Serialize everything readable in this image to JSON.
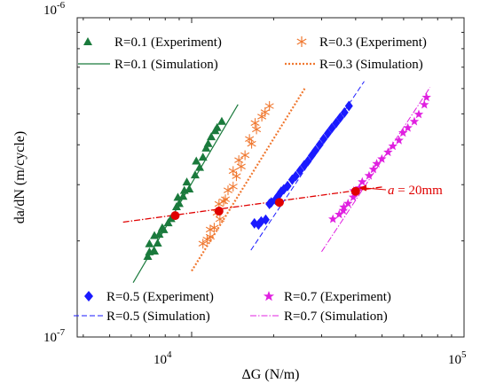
{
  "chart_data": {
    "type": "scatter",
    "title": "",
    "xlabel": "ΔG (N/m)",
    "ylabel": "da/dN (m/cycle)",
    "xscale": "log",
    "yscale": "log",
    "xlim": [
      3800,
      100000
    ],
    "ylim": [
      1e-07,
      1e-06
    ],
    "grid": false,
    "x_tick_labels": [
      {
        "value": 10000,
        "base": "10",
        "exp": "4"
      },
      {
        "value": 100000,
        "base": "10",
        "exp": "5"
      }
    ],
    "y_tick_labels": [
      {
        "value": 1e-06,
        "base": "10",
        "exp": "-6"
      },
      {
        "value": 1e-07,
        "base": "10",
        "exp": "-7"
      }
    ],
    "legends": [
      {
        "placement": "top-left",
        "entries": [
          {
            "label": "R=0.1 (Experiment)",
            "series": 0,
            "kind": "experiment"
          },
          {
            "label": "R=0.1 (Simulation)",
            "series": 0,
            "kind": "simulation"
          }
        ]
      },
      {
        "placement": "top-right",
        "entries": [
          {
            "label": "R=0.3 (Experiment)",
            "series": 1,
            "kind": "experiment"
          },
          {
            "label": "R=0.3 (Simulation)",
            "series": 1,
            "kind": "simulation"
          }
        ]
      },
      {
        "placement": "bottom-left",
        "entries": [
          {
            "label": "R=0.5 (Experiment)",
            "series": 2,
            "kind": "experiment"
          },
          {
            "label": "R=0.5 (Simulation)",
            "series": 2,
            "kind": "simulation"
          }
        ]
      },
      {
        "placement": "bottom-right",
        "entries": [
          {
            "label": "R=0.7 (Experiment)",
            "series": 3,
            "kind": "experiment"
          },
          {
            "label": "R=0.7 (Simulation)",
            "series": 3,
            "kind": "simulation"
          }
        ]
      }
    ],
    "series": [
      {
        "name": "R=0.1",
        "color": "#1a7a3c",
        "marker": "triangle",
        "line_style": "solid",
        "experiment": [
          [
            6900,
            1.79e-07
          ],
          [
            7000,
            1.85e-07
          ],
          [
            7300,
            1.86e-07
          ],
          [
            7000,
            1.96e-07
          ],
          [
            7500,
            1.97e-07
          ],
          [
            7300,
            2.08e-07
          ],
          [
            7600,
            2.1e-07
          ],
          [
            7900,
            2.17e-07
          ],
          [
            7800,
            2.2e-07
          ],
          [
            8200,
            2.28e-07
          ],
          [
            8400,
            2.35e-07
          ],
          [
            8800,
            2.56e-07
          ],
          [
            9000,
            2.62e-07
          ],
          [
            8900,
            2.74e-07
          ],
          [
            9300,
            2.76e-07
          ],
          [
            9400,
            2.88e-07
          ],
          [
            9800,
            2.91e-07
          ],
          [
            9600,
            3.06e-07
          ],
          [
            10300,
            3.22e-07
          ],
          [
            10700,
            3.4e-07
          ],
          [
            10400,
            3.56e-07
          ],
          [
            11000,
            3.66e-07
          ],
          [
            11300,
            3.91e-07
          ],
          [
            11500,
            4.04e-07
          ],
          [
            11800,
            4.24e-07
          ],
          [
            12200,
            4.43e-07
          ],
          [
            12400,
            4.53e-07
          ],
          [
            12900,
            4.74e-07
          ]
        ],
        "simulation": [
          [
            6100,
            1.48e-07
          ],
          [
            14800,
            5.35e-07
          ]
        ]
      },
      {
        "name": "R=0.3",
        "color": "#f07830",
        "marker": "asterisk",
        "line_style": "dotted",
        "experiment": [
          [
            11000,
            1.96e-07
          ],
          [
            11400,
            2.02e-07
          ],
          [
            11700,
            2.06e-07
          ],
          [
            11700,
            2.17e-07
          ],
          [
            12100,
            2.2e-07
          ],
          [
            12700,
            2.34e-07
          ],
          [
            12400,
            2.45e-07
          ],
          [
            12600,
            2.61e-07
          ],
          [
            13100,
            2.66e-07
          ],
          [
            13300,
            2.7e-07
          ],
          [
            13600,
            2.88e-07
          ],
          [
            14200,
            2.96e-07
          ],
          [
            14600,
            3.19e-07
          ],
          [
            14200,
            3.31e-07
          ],
          [
            15200,
            3.42e-07
          ],
          [
            14900,
            3.58e-07
          ],
          [
            15700,
            3.71e-07
          ],
          [
            16600,
            4.03e-07
          ],
          [
            16300,
            4.17e-07
          ],
          [
            17300,
            4.47e-07
          ],
          [
            17100,
            4.68e-07
          ],
          [
            18100,
            4.9e-07
          ],
          [
            18600,
            5.06e-07
          ],
          [
            19300,
            5.29e-07
          ]
        ],
        "simulation": [
          [
            10000,
            1.61e-07
          ],
          [
            26000,
            6e-07
          ]
        ]
      },
      {
        "name": "R=0.5",
        "color": "#1a1aff",
        "marker": "diamond",
        "line_style": "dashed",
        "experiment": [
          [
            17000,
            2.27e-07
          ],
          [
            17600,
            2.25e-07
          ],
          [
            18000,
            2.3e-07
          ],
          [
            18700,
            2.33e-07
          ],
          [
            19300,
            2.61e-07
          ],
          [
            19600,
            2.64e-07
          ],
          [
            20300,
            2.69e-07
          ],
          [
            20800,
            2.77e-07
          ],
          [
            21300,
            2.85e-07
          ],
          [
            21800,
            2.9e-07
          ],
          [
            22500,
            2.97e-07
          ],
          [
            23400,
            3.11e-07
          ],
          [
            24100,
            3.19e-07
          ],
          [
            25000,
            3.32e-07
          ],
          [
            25900,
            3.45e-07
          ],
          [
            26700,
            3.55e-07
          ],
          [
            27600,
            3.7e-07
          ],
          [
            28500,
            3.84e-07
          ],
          [
            29500,
            4e-07
          ],
          [
            30500,
            4.17e-07
          ],
          [
            31600,
            4.34e-07
          ],
          [
            32700,
            4.51e-07
          ],
          [
            33900,
            4.68e-07
          ],
          [
            35100,
            4.86e-07
          ],
          [
            36400,
            5.05e-07
          ],
          [
            37800,
            5.29e-07
          ]
        ],
        "simulation": [
          [
            16500,
            1.87e-07
          ],
          [
            43000,
            6.32e-07
          ]
        ]
      },
      {
        "name": "R=0.7",
        "color": "#e020e0",
        "marker": "star",
        "line_style": "dashdot",
        "experiment": [
          [
            33000,
            2.34e-07
          ],
          [
            34800,
            2.42e-07
          ],
          [
            36000,
            2.49e-07
          ],
          [
            36200,
            2.55e-07
          ],
          [
            37500,
            2.62e-07
          ],
          [
            39200,
            2.74e-07
          ],
          [
            39400,
            2.87e-07
          ],
          [
            41300,
            2.93e-07
          ],
          [
            42300,
            3.06e-07
          ],
          [
            44800,
            3.2e-07
          ],
          [
            46500,
            3.35e-07
          ],
          [
            47800,
            3.49e-07
          ],
          [
            49900,
            3.61e-07
          ],
          [
            52600,
            3.79e-07
          ],
          [
            54800,
            3.96e-07
          ],
          [
            57700,
            4.13e-07
          ],
          [
            59700,
            4.36e-07
          ],
          [
            62200,
            4.52e-07
          ],
          [
            65700,
            4.73e-07
          ],
          [
            68200,
            4.98e-07
          ],
          [
            71500,
            5.34e-07
          ],
          [
            72800,
            5.63e-07
          ]
        ],
        "simulation": [
          [
            30000,
            1.85e-07
          ],
          [
            75000,
            6.05e-07
          ]
        ]
      }
    ],
    "reference_line": {
      "color": "#e00000",
      "line_style": "dashdot",
      "points": [
        [
          5600,
          2.29e-07
        ],
        [
          50000,
          2.95e-07
        ]
      ]
    },
    "reference_points": [
      {
        "series": "R=0.1",
        "x": 8700,
        "y": 2.4e-07
      },
      {
        "series": "R=0.3",
        "x": 12600,
        "y": 2.48e-07
      },
      {
        "series": "R=0.5",
        "x": 21000,
        "y": 2.64e-07
      },
      {
        "series": "R=0.7",
        "x": 40000,
        "y": 2.86e-07
      }
    ],
    "annotation": {
      "italic": "a",
      "rest": " = 20mm",
      "color": "#e00000"
    }
  }
}
